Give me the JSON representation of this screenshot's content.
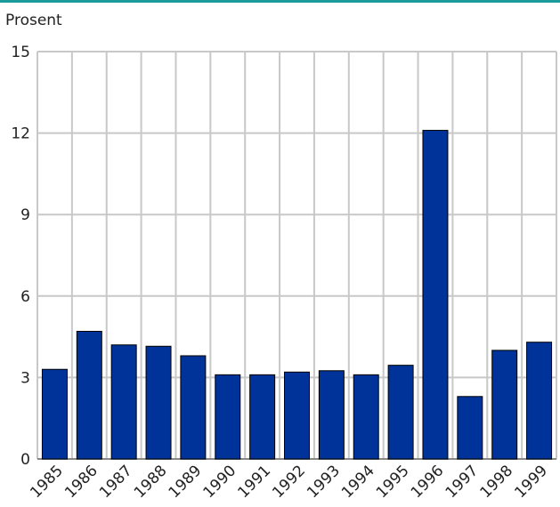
{
  "chart_data": {
    "type": "bar",
    "y_label": "Prosent",
    "categories": [
      "1985",
      "1986",
      "1987",
      "1988",
      "1989",
      "1990",
      "1991",
      "1992",
      "1993",
      "1994",
      "1995",
      "1996",
      "1997",
      "1998",
      "1999"
    ],
    "values": [
      3.3,
      4.7,
      4.2,
      4.15,
      3.8,
      3.1,
      3.1,
      3.2,
      3.25,
      3.1,
      3.45,
      12.1,
      2.3,
      4.0,
      4.3
    ],
    "color": "#003399",
    "ylim": [
      0,
      15
    ],
    "yticks": [
      0,
      3,
      6,
      9,
      12,
      15
    ],
    "grid": true
  }
}
